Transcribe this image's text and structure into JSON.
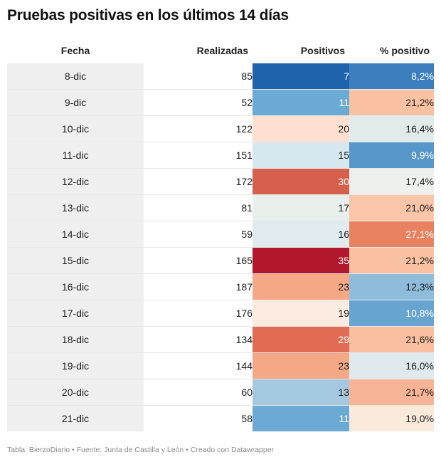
{
  "title": "Pruebas positivas en los últimos 14 días",
  "headers": {
    "fecha": "Fecha",
    "realizadas": "Realizadas",
    "positivos": "Positivos",
    "pct": "% positivo"
  },
  "footer": "Tabla: BierzoDiario • Fuente: Junta de Castilla y León • Creado con Datawrapper",
  "chart_data": {
    "type": "table",
    "columns": [
      "Fecha",
      "Realizadas",
      "Positivos",
      "% positivo"
    ],
    "rows": [
      {
        "fecha": "8-dic",
        "realizadas": 85,
        "positivos": 7,
        "pct": "8,2%",
        "pos_color": "#1f63ad",
        "pct_color": "#3b7fbe"
      },
      {
        "fecha": "9-dic",
        "realizadas": 52,
        "positivos": 11,
        "pct": "21,2%",
        "pos_color": "#6aaad3",
        "pct_color": "#fac2a3"
      },
      {
        "fecha": "10-dic",
        "realizadas": 122,
        "positivos": 20,
        "pct": "16,4%",
        "pos_color": "#fde0d0",
        "pct_color": "#e1ebec"
      },
      {
        "fecha": "11-dic",
        "realizadas": 151,
        "positivos": 15,
        "pct": "9,9%",
        "pos_color": "#d6e7ef",
        "pct_color": "#5796c9"
      },
      {
        "fecha": "12-dic",
        "realizadas": 172,
        "positivos": 30,
        "pct": "17,4%",
        "pos_color": "#d6604d",
        "pct_color": "#edf0eb"
      },
      {
        "fecha": "13-dic",
        "realizadas": 81,
        "positivos": 17,
        "pct": "21,0%",
        "pos_color": "#e9efea",
        "pct_color": "#fbc5a9"
      },
      {
        "fecha": "14-dic",
        "realizadas": 59,
        "positivos": 16,
        "pct": "27,1%",
        "pos_color": "#e0ebef",
        "pct_color": "#e98261"
      },
      {
        "fecha": "15-dic",
        "realizadas": 165,
        "positivos": 35,
        "pct": "21,2%",
        "pos_color": "#b2182b",
        "pct_color": "#fac2a3"
      },
      {
        "fecha": "16-dic",
        "realizadas": 187,
        "positivos": 23,
        "pct": "12,3%",
        "pos_color": "#f4a886",
        "pct_color": "#90bcdc"
      },
      {
        "fecha": "17-dic",
        "realizadas": 176,
        "positivos": 19,
        "pct": "10,8%",
        "pos_color": "#fbebe0",
        "pct_color": "#67a5d0"
      },
      {
        "fecha": "18-dic",
        "realizadas": 134,
        "positivos": 29,
        "pct": "21,6%",
        "pos_color": "#e06c56",
        "pct_color": "#fabea0"
      },
      {
        "fecha": "19-dic",
        "realizadas": 144,
        "positivos": 23,
        "pct": "16,0%",
        "pos_color": "#f4a886",
        "pct_color": "#deeaee"
      },
      {
        "fecha": "20-dic",
        "realizadas": 60,
        "positivos": 13,
        "pct": "21,7%",
        "pos_color": "#a4c8e0",
        "pct_color": "#f8b496"
      },
      {
        "fecha": "21-dic",
        "realizadas": 58,
        "positivos": 11,
        "pct": "19,0%",
        "pos_color": "#6aaad3",
        "pct_color": "#faeadc"
      }
    ]
  }
}
